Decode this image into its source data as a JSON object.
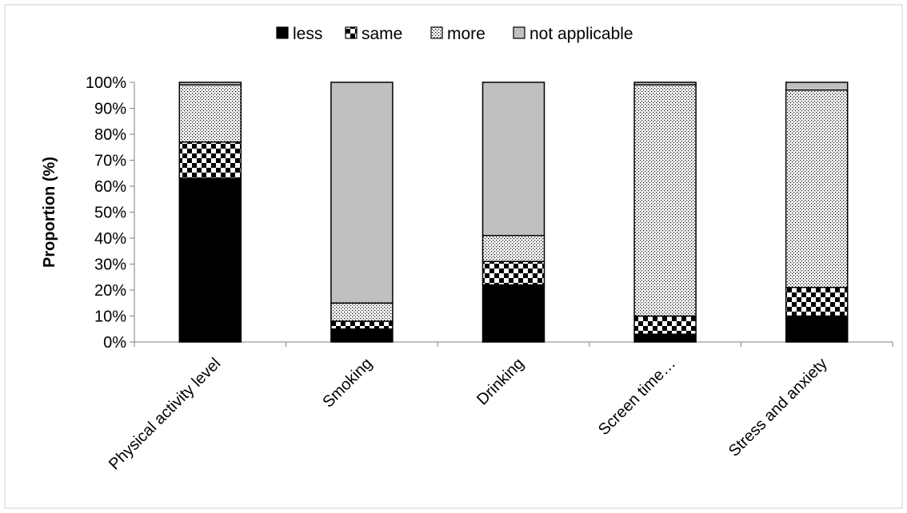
{
  "chart_data": {
    "type": "bar",
    "stacked": true,
    "ylabel": "Proportion (%)",
    "xlabel": "",
    "ylim": [
      0,
      100
    ],
    "yticks": [
      "0%",
      "10%",
      "20%",
      "30%",
      "40%",
      "50%",
      "60%",
      "70%",
      "80%",
      "90%",
      "100%"
    ],
    "categories": [
      "Physical activity level",
      "Smoking",
      "Drinking",
      "Screen time…",
      "Stress and anxiety"
    ],
    "series": [
      {
        "name": "less",
        "pattern": "solid",
        "values": [
          63,
          5,
          22,
          3,
          10
        ]
      },
      {
        "name": "same",
        "pattern": "checker",
        "values": [
          14,
          3,
          9,
          7,
          11
        ]
      },
      {
        "name": "more",
        "pattern": "dots",
        "values": [
          22,
          7,
          10,
          89,
          76
        ]
      },
      {
        "name": "not applicable",
        "pattern": "gray",
        "values": [
          1,
          85,
          59,
          1,
          3
        ]
      }
    ],
    "legend_position": "top",
    "grid": false,
    "colors": {
      "less": "#000000",
      "gray": "#c0c0c0",
      "border": "#000000"
    }
  }
}
